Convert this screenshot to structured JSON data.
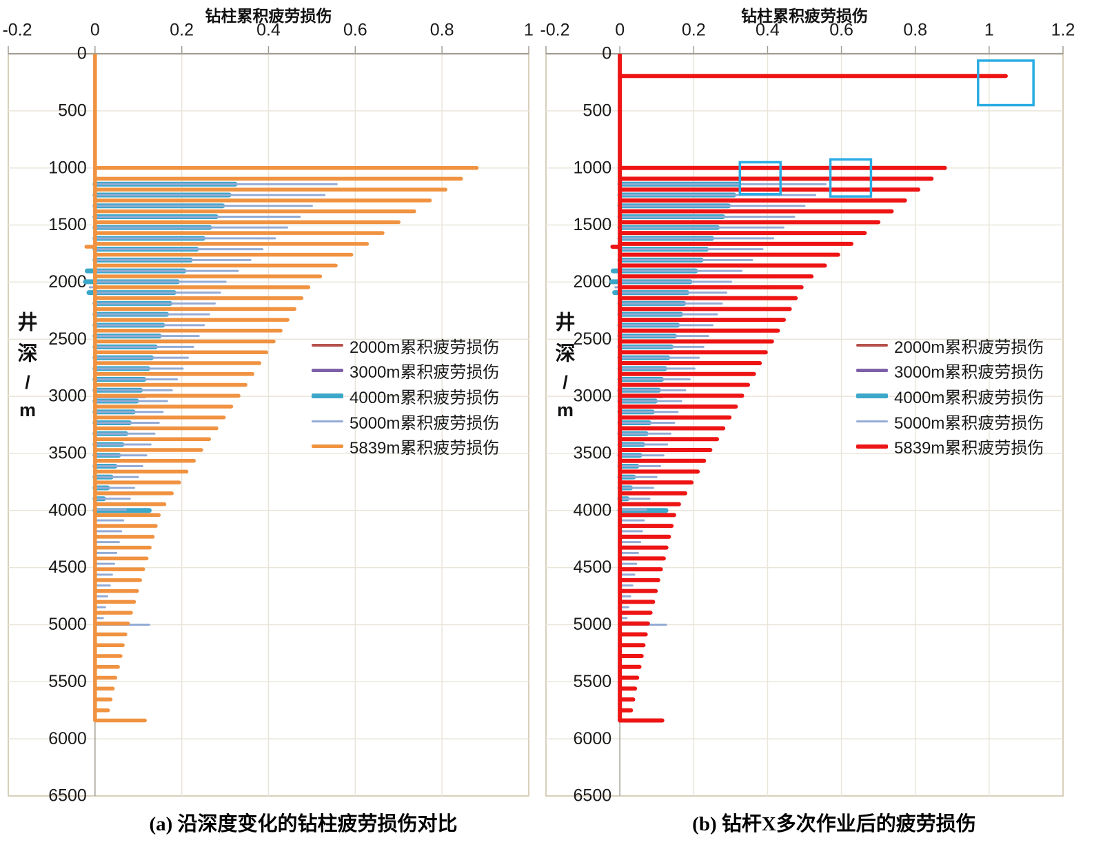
{
  "page": {
    "background": "#ffffff"
  },
  "palette": {
    "plot_border": "#d8cfba",
    "gridline": "#e9e5d9",
    "axis": "#a29d92",
    "highlight_box": "#29ace3",
    "text": "#1a1a1a"
  },
  "chart_data": {
    "type": "line",
    "x_axis_title": "钻柱累积疲劳损伤",
    "y_axis_title": "井深/m",
    "y_axis_label_chars": [
      "井",
      "深",
      "/",
      "m"
    ],
    "y_ticks": [
      0,
      500,
      1000,
      1500,
      2000,
      2500,
      3000,
      3500,
      4000,
      4500,
      5000,
      5500,
      6000,
      6500
    ],
    "y_max": 6500,
    "series": [
      {
        "id": "d2000",
        "label": "2000m累积疲劳损伤",
        "baseline_depths": [
          1700,
          2000
        ],
        "points": [
          [
            1712,
            0.012
          ],
          [
            1807,
            0.01
          ],
          [
            1902,
            0.009
          ],
          [
            2000,
            0.035
          ]
        ]
      },
      {
        "id": "d3000",
        "label": "3000m累积疲劳损伤",
        "baseline_depths": [
          1700,
          3000
        ],
        "points": [
          [
            1712,
            0.02
          ],
          [
            1807,
            0.019
          ],
          [
            1902,
            0.018
          ],
          [
            1997,
            0.017
          ],
          [
            1997,
            -0.012
          ],
          [
            2092,
            0.016
          ],
          [
            2187,
            0.014
          ],
          [
            2282,
            0.013
          ],
          [
            2377,
            0.012
          ],
          [
            2472,
            0.011
          ],
          [
            2567,
            0.01
          ],
          [
            2662,
            0.009
          ],
          [
            2757,
            0.009
          ],
          [
            2852,
            0.008
          ],
          [
            2947,
            0.008
          ],
          [
            3000,
            0.115
          ]
        ]
      },
      {
        "id": "d4000",
        "label": "4000m累积疲劳损伤",
        "baseline_depths": [
          1142,
          4000
        ],
        "points": [
          [
            1142,
            0.323
          ],
          [
            1237,
            0.309
          ],
          [
            1332,
            0.294
          ],
          [
            1427,
            0.279
          ],
          [
            1522,
            0.264
          ],
          [
            1617,
            0.249
          ],
          [
            1712,
            0.234
          ],
          [
            1807,
            0.22
          ],
          [
            1902,
            0.205
          ],
          [
            1902,
            -0.018
          ],
          [
            1997,
            0.19
          ],
          [
            1997,
            -0.022
          ],
          [
            2092,
            0.182
          ],
          [
            2092,
            -0.014
          ],
          [
            2187,
            0.173
          ],
          [
            2282,
            0.165
          ],
          [
            2377,
            0.156
          ],
          [
            2472,
            0.148
          ],
          [
            2567,
            0.139
          ],
          [
            2662,
            0.13
          ],
          [
            2757,
            0.122
          ],
          [
            2852,
            0.113
          ],
          [
            2947,
            0.105
          ],
          [
            3042,
            0.096
          ],
          [
            3137,
            0.088
          ],
          [
            3232,
            0.079
          ],
          [
            3327,
            0.071
          ],
          [
            3422,
            0.062
          ],
          [
            3517,
            0.054
          ],
          [
            3612,
            0.046
          ],
          [
            3707,
            0.037
          ],
          [
            3802,
            0.029
          ],
          [
            3897,
            0.02
          ],
          [
            4000,
            0.125
          ]
        ]
      },
      {
        "id": "d5000",
        "label": "5000m累积疲劳损伤",
        "baseline_depths": [
          1142,
          5000
        ],
        "points": [
          [
            1142,
            0.557
          ],
          [
            1237,
            0.529
          ],
          [
            1332,
            0.5
          ],
          [
            1427,
            0.472
          ],
          [
            1522,
            0.443
          ],
          [
            1617,
            0.415
          ],
          [
            1712,
            0.386
          ],
          [
            1807,
            0.358
          ],
          [
            1902,
            0.329
          ],
          [
            1997,
            0.301
          ],
          [
            2045,
            -0.012
          ],
          [
            2092,
            0.288
          ],
          [
            2187,
            0.276
          ],
          [
            2282,
            0.263
          ],
          [
            2377,
            0.251
          ],
          [
            2472,
            0.239
          ],
          [
            2567,
            0.226
          ],
          [
            2662,
            0.214
          ],
          [
            2757,
            0.202
          ],
          [
            2852,
            0.189
          ],
          [
            2947,
            0.177
          ],
          [
            3042,
            0.166
          ],
          [
            3137,
            0.156
          ],
          [
            3232,
            0.147
          ],
          [
            3327,
            0.137
          ],
          [
            3422,
            0.128
          ],
          [
            3517,
            0.118
          ],
          [
            3612,
            0.109
          ],
          [
            3707,
            0.099
          ],
          [
            3802,
            0.09
          ],
          [
            3897,
            0.08
          ],
          [
            3992,
            0.071
          ],
          [
            4087,
            0.065
          ],
          [
            4182,
            0.06
          ],
          [
            4277,
            0.055
          ],
          [
            4372,
            0.049
          ],
          [
            4467,
            0.044
          ],
          [
            4562,
            0.039
          ],
          [
            4657,
            0.034
          ],
          [
            4752,
            0.028
          ],
          [
            4847,
            0.023
          ],
          [
            4942,
            0.018
          ],
          [
            5000,
            0.125
          ]
        ]
      },
      {
        "id": "d5839",
        "label": "5839m累积疲劳损伤",
        "baseline_depths": [
          0,
          5839
        ],
        "points": [
          [
            1000,
            0.88
          ],
          [
            1095,
            0.844
          ],
          [
            1190,
            0.808
          ],
          [
            1285,
            0.772
          ],
          [
            1380,
            0.736
          ],
          [
            1475,
            0.7
          ],
          [
            1570,
            0.663
          ],
          [
            1665,
            0.627
          ],
          [
            1690,
            -0.02
          ],
          [
            1760,
            0.591
          ],
          [
            1855,
            0.555
          ],
          [
            1950,
            0.519
          ],
          [
            2045,
            0.492
          ],
          [
            2140,
            0.476
          ],
          [
            2235,
            0.46
          ],
          [
            2330,
            0.444
          ],
          [
            2425,
            0.428
          ],
          [
            2520,
            0.412
          ],
          [
            2615,
            0.395
          ],
          [
            2710,
            0.379
          ],
          [
            2805,
            0.363
          ],
          [
            2900,
            0.347
          ],
          [
            2995,
            0.331
          ],
          [
            3090,
            0.314
          ],
          [
            3185,
            0.297
          ],
          [
            3280,
            0.28
          ],
          [
            3375,
            0.263
          ],
          [
            3470,
            0.245
          ],
          [
            3565,
            0.228
          ],
          [
            3660,
            0.211
          ],
          [
            3755,
            0.194
          ],
          [
            3850,
            0.177
          ],
          [
            3945,
            0.16
          ],
          [
            4040,
            0.147
          ],
          [
            4135,
            0.14
          ],
          [
            4230,
            0.133
          ],
          [
            4325,
            0.126
          ],
          [
            4420,
            0.119
          ],
          [
            4515,
            0.111
          ],
          [
            4610,
            0.104
          ],
          [
            4705,
            0.097
          ],
          [
            4800,
            0.09
          ],
          [
            4895,
            0.083
          ],
          [
            4990,
            0.076
          ],
          [
            5085,
            0.07
          ],
          [
            5180,
            0.064
          ],
          [
            5275,
            0.059
          ],
          [
            5370,
            0.053
          ],
          [
            5465,
            0.047
          ],
          [
            5560,
            0.041
          ],
          [
            5655,
            0.036
          ],
          [
            5750,
            0.03
          ],
          [
            5839,
            0.115
          ]
        ]
      }
    ],
    "charts": [
      {
        "name": "a",
        "caption": "(a) 沿深度变化的钻柱疲劳损伤对比",
        "x_ticks": [
          -0.2,
          0,
          0.2,
          0.4,
          0.6,
          0.8,
          1
        ],
        "x_min": -0.2,
        "x_max": 1,
        "series_style": {
          "d2000": {
            "color": "#b4524b",
            "lw": 4,
            "baseline_lw": 3
          },
          "d3000": {
            "color": "#7e60a8",
            "lw": 5,
            "baseline_lw": 4
          },
          "d4000": {
            "color": "#3ba7c9",
            "lw": 7,
            "baseline_lw": 4.5
          },
          "d5000": {
            "color": "#93abd4",
            "lw": 3,
            "baseline_lw": 2.5
          },
          "d5839": {
            "color": "#f09240",
            "lw": 5.5,
            "baseline_lw": 5.5
          }
        },
        "extra_points": {},
        "highlight_boxes": []
      },
      {
        "name": "b",
        "caption": "(b) 钻杆X多次作业后的疲劳损伤",
        "x_ticks": [
          -0.2,
          0,
          0.2,
          0.4,
          0.6,
          0.8,
          1,
          1.2
        ],
        "x_min": -0.2,
        "x_max": 1.2,
        "series_style": {
          "d2000": {
            "color": "#b4524b",
            "lw": 4,
            "baseline_lw": 3
          },
          "d3000": {
            "color": "#7e60a8",
            "lw": 5,
            "baseline_lw": 4
          },
          "d4000": {
            "color": "#3ba7c9",
            "lw": 7,
            "baseline_lw": 4.5
          },
          "d5000": {
            "color": "#93abd4",
            "lw": 3,
            "baseline_lw": 2.5
          },
          "d5839": {
            "color": "#ee1414",
            "lw": 6,
            "baseline_lw": 6
          }
        },
        "extra_points": {
          "d5839": [
            [
              195,
              1.045
            ]
          ]
        },
        "highlight_boxes": [
          {
            "x1": 0.97,
            "x2": 1.12,
            "d1": 60,
            "d2": 450
          },
          {
            "x1": 0.325,
            "x2": 0.435,
            "d1": 950,
            "d2": 1230
          },
          {
            "x1": 0.57,
            "x2": 0.68,
            "d1": 925,
            "d2": 1250
          }
        ]
      }
    ]
  }
}
